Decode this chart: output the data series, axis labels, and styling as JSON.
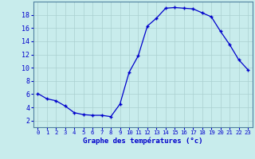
{
  "hours": [
    0,
    1,
    2,
    3,
    4,
    5,
    6,
    7,
    8,
    9,
    10,
    11,
    12,
    13,
    14,
    15,
    16,
    17,
    18,
    19,
    20,
    21,
    22,
    23
  ],
  "temps": [
    6.1,
    5.3,
    5.0,
    4.2,
    3.2,
    2.9,
    2.8,
    2.8,
    2.6,
    4.5,
    9.3,
    11.8,
    16.3,
    17.5,
    19.0,
    19.1,
    19.0,
    18.9,
    18.3,
    17.7,
    15.5,
    13.5,
    11.2,
    9.7
  ],
  "line_color": "#0000cc",
  "marker": "+",
  "bg_color": "#c8ecec",
  "grid_color": "#aad0d0",
  "xlabel": "Graphe des températures (°c)",
  "tick_color": "#0000cc",
  "ylim": [
    1,
    20
  ],
  "yticks": [
    2,
    4,
    6,
    8,
    10,
    12,
    14,
    16,
    18
  ],
  "xlim": [
    -0.5,
    23.5
  ]
}
